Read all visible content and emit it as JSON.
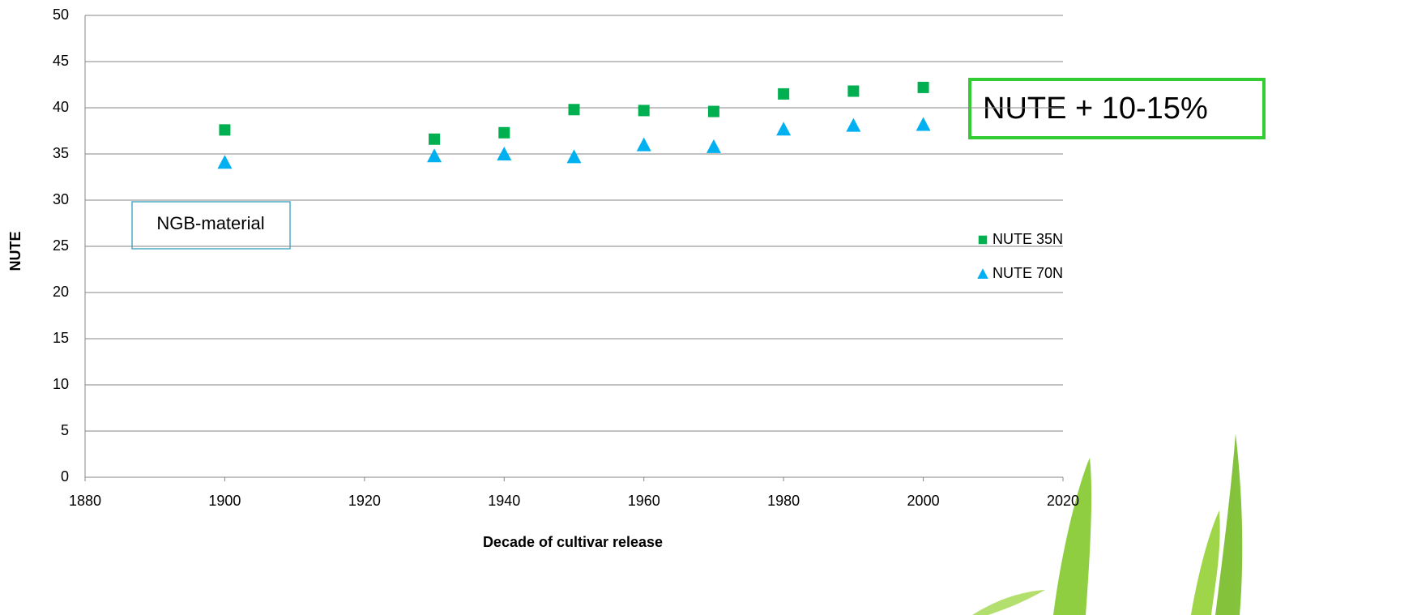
{
  "chart_data": {
    "type": "scatter",
    "xlabel": "Decade of cultivar release",
    "ylabel": "NUTE",
    "xlim": [
      1880,
      2020
    ],
    "xticks": [
      1880,
      1900,
      1920,
      1940,
      1960,
      1980,
      2000,
      2020
    ],
    "ylim": [
      0,
      50
    ],
    "yticks": [
      0,
      5,
      10,
      15,
      20,
      25,
      30,
      35,
      40,
      45,
      50
    ],
    "grid": true,
    "legend": "right",
    "annotations": [
      "NGB-material",
      "NUTE + 10-15%"
    ],
    "x": [
      1900,
      1930,
      1940,
      1950,
      1960,
      1970,
      1980,
      1990,
      2000
    ],
    "series": [
      {
        "name": "NUTE 35N",
        "color": "#00b050",
        "marker": "square",
        "values": [
          37.6,
          36.6,
          37.3,
          39.8,
          39.7,
          39.6,
          41.5,
          41.8,
          42.2
        ]
      },
      {
        "name": "NUTE 70N",
        "color": "#00b0f0",
        "marker": "triangle",
        "values": [
          34.1,
          34.8,
          35.0,
          34.7,
          36.0,
          35.8,
          37.7,
          38.1,
          38.2
        ]
      }
    ]
  }
}
